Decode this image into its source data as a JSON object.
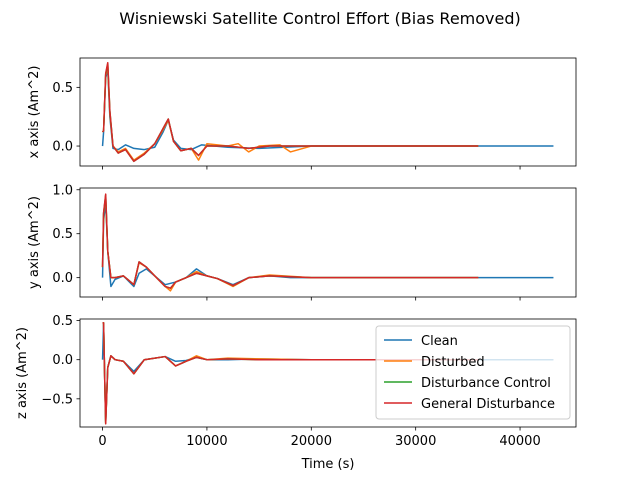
{
  "chart_data": {
    "type": "line",
    "title": "Wisniewski Satellite Control Effort (Bias Removed)",
    "xlabel": "Time (s)",
    "xlim": [
      -2160,
      45360
    ],
    "xticks": [
      0,
      10000,
      20000,
      30000,
      40000
    ],
    "xtick_labels": [
      "0",
      "10000",
      "20000",
      "30000",
      "40000"
    ],
    "legend": {
      "location": "lower-right of bottom panel",
      "entries": [
        "Clean",
        "Disturbed",
        "Disturbance Control",
        "General Disturbance"
      ]
    },
    "colors": {
      "Clean": "#1f77b4",
      "Disturbed": "#ff7f0e",
      "Disturbance Control": "#2ca02c",
      "General Disturbance": "#d62728"
    },
    "panels": [
      {
        "ylabel": "x axis (Am^2)",
        "ylim": [
          -0.17,
          0.75
        ],
        "yticks": [
          0.0,
          0.5
        ],
        "ytick_labels": [
          "0.0",
          "0.5"
        ],
        "series": [
          {
            "name": "Clean",
            "x": [
              0,
              100,
              300,
              500,
              700,
              1000,
              1500,
              2200,
              3000,
              4000,
              5000,
              5800,
              6300,
              6800,
              7500,
              8500,
              9500,
              12000,
              15000,
              20000,
              30000,
              40000,
              43200
            ],
            "y": [
              0.0,
              0.12,
              0.58,
              0.65,
              0.25,
              -0.02,
              -0.03,
              0.01,
              -0.02,
              -0.03,
              -0.01,
              0.12,
              0.22,
              0.05,
              -0.02,
              -0.03,
              0.01,
              -0.01,
              -0.02,
              0.0,
              0.0,
              0.0,
              0.0
            ]
          },
          {
            "name": "Disturbed",
            "x": [
              0,
              100,
              300,
              500,
              700,
              1000,
              1500,
              2200,
              3000,
              4000,
              5000,
              5800,
              6300,
              6800,
              7500,
              8500,
              9200,
              10000,
              11000,
              12000,
              13000,
              14000,
              15000,
              17000,
              18000,
              20000,
              25000,
              30000,
              36000
            ],
            "y": [
              0.12,
              0.13,
              0.6,
              0.68,
              0.28,
              0.0,
              -0.05,
              -0.02,
              -0.12,
              -0.06,
              0.02,
              0.14,
              0.22,
              0.04,
              -0.04,
              -0.02,
              -0.12,
              0.02,
              0.01,
              0.0,
              0.02,
              -0.05,
              0.0,
              0.01,
              -0.05,
              0.0,
              0.0,
              0.0,
              0.0
            ]
          },
          {
            "name": "Disturbance Control",
            "x": [
              0,
              100,
              300,
              500,
              700,
              1000,
              1500,
              2200,
              3000,
              4000,
              5000,
              5800,
              6300,
              6800,
              7500,
              8500,
              9200,
              10000,
              12000,
              14000,
              16000,
              20000,
              25000,
              30000,
              36000
            ],
            "y": [
              0.12,
              0.13,
              0.61,
              0.7,
              0.3,
              0.0,
              -0.06,
              -0.03,
              -0.13,
              -0.07,
              0.02,
              0.15,
              0.23,
              0.04,
              -0.04,
              -0.02,
              -0.08,
              0.0,
              0.0,
              -0.02,
              0.0,
              0.0,
              0.0,
              0.0,
              0.0
            ]
          },
          {
            "name": "General Disturbance",
            "x": [
              0,
              100,
              300,
              500,
              700,
              1000,
              1500,
              2200,
              3000,
              4000,
              5000,
              5800,
              6300,
              6800,
              7500,
              8500,
              9200,
              10000,
              12000,
              14000,
              16000,
              20000,
              25000,
              30000,
              36000
            ],
            "y": [
              0.12,
              0.13,
              0.62,
              0.71,
              0.3,
              0.0,
              -0.06,
              -0.03,
              -0.13,
              -0.07,
              0.02,
              0.15,
              0.23,
              0.04,
              -0.04,
              -0.02,
              -0.08,
              0.0,
              0.0,
              -0.02,
              0.0,
              0.0,
              0.0,
              0.0,
              0.0
            ]
          }
        ]
      },
      {
        "ylabel": "y axis (Am^2)",
        "ylim": [
          -0.22,
          1.02
        ],
        "yticks": [
          0.0,
          0.5,
          1.0
        ],
        "ytick_labels": [
          "0.0",
          "0.5",
          "1.0"
        ],
        "series": [
          {
            "name": "Clean",
            "x": [
              0,
              100,
              300,
              500,
              800,
              1200,
              2000,
              3000,
              3500,
              4200,
              5000,
              6000,
              7000,
              8000,
              9000,
              10000,
              11000,
              12500,
              14000,
              16000,
              18000,
              20000,
              30000,
              40000,
              43200
            ],
            "y": [
              0.0,
              0.65,
              0.85,
              0.3,
              -0.1,
              -0.02,
              0.02,
              -0.1,
              0.05,
              0.1,
              0.02,
              -0.08,
              -0.05,
              0.0,
              0.1,
              0.02,
              -0.01,
              -0.08,
              0.0,
              0.02,
              0.0,
              0.0,
              0.0,
              0.0,
              0.0
            ]
          },
          {
            "name": "Disturbed",
            "x": [
              0,
              100,
              300,
              500,
              800,
              1200,
              2000,
              3000,
              3500,
              4200,
              5000,
              6000,
              6500,
              7000,
              8000,
              9000,
              10000,
              11000,
              12500,
              14000,
              16000,
              20000,
              25000,
              30000,
              36000
            ],
            "y": [
              0.12,
              0.72,
              0.92,
              0.3,
              0.0,
              0.0,
              0.02,
              -0.08,
              0.17,
              0.12,
              0.02,
              -0.1,
              -0.15,
              -0.05,
              0.0,
              0.07,
              0.02,
              -0.01,
              -0.1,
              0.0,
              0.03,
              0.0,
              0.0,
              0.0,
              0.0
            ]
          },
          {
            "name": "Disturbance Control",
            "x": [
              0,
              100,
              300,
              500,
              800,
              1200,
              2000,
              3000,
              3500,
              4200,
              5000,
              6000,
              6500,
              7000,
              8000,
              9000,
              10000,
              11000,
              12500,
              14000,
              16000,
              20000,
              25000,
              30000,
              36000
            ],
            "y": [
              0.12,
              0.73,
              0.94,
              0.3,
              0.0,
              0.0,
              0.02,
              -0.08,
              0.18,
              0.12,
              0.02,
              -0.1,
              -0.12,
              -0.05,
              0.0,
              0.05,
              0.02,
              -0.01,
              -0.09,
              0.0,
              0.02,
              0.0,
              0.0,
              0.0,
              0.0
            ]
          },
          {
            "name": "General Disturbance",
            "x": [
              0,
              100,
              300,
              500,
              800,
              1200,
              2000,
              3000,
              3500,
              4200,
              5000,
              6000,
              6500,
              7000,
              8000,
              9000,
              10000,
              11000,
              12500,
              14000,
              16000,
              20000,
              25000,
              30000,
              36000
            ],
            "y": [
              0.12,
              0.74,
              0.95,
              0.3,
              0.0,
              0.0,
              0.02,
              -0.08,
              0.18,
              0.12,
              0.02,
              -0.1,
              -0.12,
              -0.05,
              0.0,
              0.05,
              0.02,
              -0.01,
              -0.09,
              0.0,
              0.02,
              0.0,
              0.0,
              0.0,
              0.0
            ]
          }
        ]
      },
      {
        "ylabel": "z axis (Am^2)",
        "ylim": [
          -0.86,
          0.52
        ],
        "yticks": [
          -0.5,
          0.0,
          0.5
        ],
        "ytick_labels": [
          "−0.5",
          "0.0",
          "0.5"
        ],
        "series": [
          {
            "name": "Clean",
            "x": [
              0,
              100,
              200,
              300,
              500,
              800,
              1200,
              2000,
              3000,
              4000,
              6000,
              7000,
              8000,
              9000,
              10000,
              12000,
              15000,
              20000,
              30000,
              40000,
              43200
            ],
            "y": [
              0.0,
              0.46,
              -0.2,
              -0.78,
              -0.1,
              0.05,
              0.0,
              -0.02,
              -0.15,
              0.0,
              0.04,
              -0.02,
              -0.01,
              0.03,
              0.0,
              0.0,
              0.01,
              0.0,
              0.0,
              0.0,
              0.0
            ]
          },
          {
            "name": "Disturbed",
            "x": [
              0,
              100,
              200,
              300,
              500,
              800,
              1200,
              2000,
              3000,
              4000,
              6000,
              7000,
              8000,
              9000,
              10000,
              12000,
              15000,
              20000,
              30000,
              36000
            ],
            "y": [
              0.47,
              0.47,
              -0.2,
              -0.8,
              -0.1,
              0.05,
              0.0,
              -0.02,
              -0.18,
              0.0,
              0.04,
              -0.08,
              -0.02,
              0.05,
              0.0,
              0.02,
              0.01,
              0.0,
              0.0,
              0.0
            ]
          },
          {
            "name": "Disturbance Control",
            "x": [
              0,
              100,
              200,
              300,
              500,
              800,
              1200,
              2000,
              3000,
              4000,
              6000,
              7000,
              8000,
              9000,
              10000,
              12000,
              15000,
              20000,
              30000,
              36000
            ],
            "y": [
              0.47,
              0.47,
              -0.2,
              -0.81,
              -0.1,
              0.05,
              0.0,
              -0.02,
              -0.18,
              0.0,
              0.04,
              -0.08,
              -0.02,
              0.03,
              0.0,
              0.01,
              0.0,
              0.0,
              0.0,
              0.0
            ]
          },
          {
            "name": "General Disturbance",
            "x": [
              0,
              100,
              200,
              300,
              500,
              800,
              1200,
              2000,
              3000,
              4000,
              6000,
              7000,
              8000,
              9000,
              10000,
              12000,
              15000,
              20000,
              30000,
              36000
            ],
            "y": [
              0.47,
              0.47,
              -0.2,
              -0.82,
              -0.1,
              0.05,
              0.0,
              -0.02,
              -0.18,
              0.0,
              0.04,
              -0.08,
              -0.02,
              0.03,
              0.0,
              0.01,
              0.0,
              0.0,
              0.0,
              0.0
            ]
          }
        ]
      }
    ]
  }
}
